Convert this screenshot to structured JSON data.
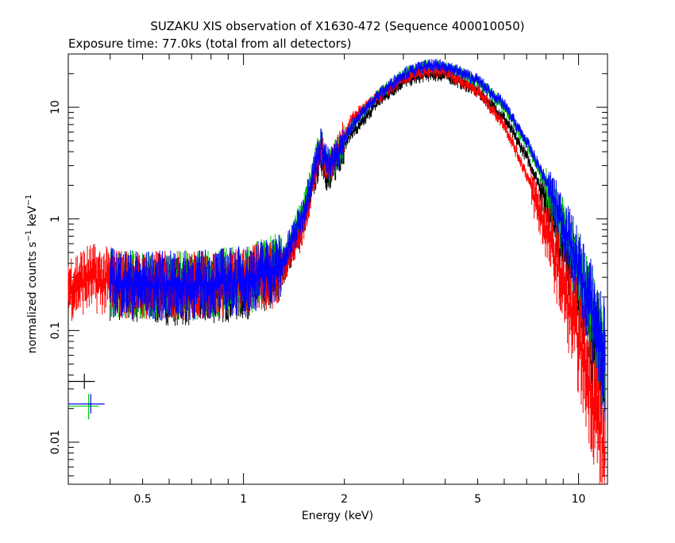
{
  "chart_data": {
    "type": "scatter",
    "title": "SUZAKU XIS observation of X1630-472 (Sequence 400010050)",
    "subtitle": "Exposure time: 77.0ks (total from all detectors)",
    "xlabel": "Energy (keV)",
    "ylabel": {
      "parts": [
        "normalized counts s",
        "−1",
        " keV",
        "−1"
      ]
    },
    "x_scale": "log",
    "y_scale": "log",
    "xlim": [
      0.3,
      12.2
    ],
    "ylim": [
      0.0042,
      30
    ],
    "x_ticks": [
      {
        "value": 0.5,
        "label": "0.5"
      },
      {
        "value": 1,
        "label": "1"
      },
      {
        "value": 2,
        "label": "2"
      },
      {
        "value": 5,
        "label": "5"
      },
      {
        "value": 10,
        "label": "10"
      }
    ],
    "y_ticks": [
      {
        "value": 0.01,
        "label": "0.01"
      },
      {
        "value": 0.1,
        "label": "0.1"
      },
      {
        "value": 1,
        "label": "1"
      },
      {
        "value": 10,
        "label": "10"
      }
    ],
    "grid": false,
    "legend": "none",
    "series": [
      {
        "color": "#000000",
        "x": [
          0.4,
          0.5,
          0.7,
          1.0,
          1.3,
          1.5,
          1.62,
          1.7,
          1.8,
          1.9,
          2.1,
          2.2,
          2.5,
          3.0,
          3.5,
          4.0,
          5.0,
          6.0,
          7.0,
          8.0,
          9.0,
          10.0,
          11.0,
          12.0
        ],
        "y": [
          0.27,
          0.25,
          0.24,
          0.27,
          0.35,
          0.9,
          2.2,
          3.8,
          2.2,
          3.4,
          6.0,
          6.5,
          11.0,
          17.0,
          19.5,
          19.5,
          14.0,
          8.0,
          3.6,
          1.5,
          0.6,
          0.26,
          0.11,
          0.045
        ]
      },
      {
        "color": "#ff0000",
        "x": [
          0.3,
          0.35,
          0.4,
          0.5,
          0.7,
          1.0,
          1.3,
          1.5,
          1.62,
          1.7,
          1.8,
          1.9,
          2.1,
          2.2,
          2.5,
          3.0,
          3.5,
          4.0,
          5.0,
          6.0,
          7.0,
          8.0,
          9.0,
          10.0,
          11.0,
          12.0
        ],
        "y": [
          0.26,
          0.32,
          0.29,
          0.27,
          0.27,
          0.29,
          0.36,
          0.8,
          2.3,
          4.2,
          2.8,
          4.0,
          7.8,
          9.0,
          12.0,
          18.0,
          21.0,
          21.0,
          14.0,
          7.0,
          2.5,
          0.85,
          0.28,
          0.1,
          0.035,
          0.01
        ]
      },
      {
        "color": "#00cc00",
        "x": [
          0.4,
          0.5,
          0.7,
          1.0,
          1.3,
          1.5,
          1.62,
          1.7,
          1.8,
          1.9,
          2.1,
          2.2,
          2.5,
          3.0,
          3.5,
          4.0,
          5.0,
          6.0,
          7.0,
          8.0,
          9.0,
          10.0,
          11.0,
          12.0
        ],
        "y": [
          0.29,
          0.27,
          0.27,
          0.3,
          0.4,
          1.1,
          2.8,
          4.8,
          3.0,
          3.8,
          7.0,
          8.2,
          12.5,
          20.0,
          23.0,
          23.0,
          17.0,
          10.0,
          4.6,
          2.0,
          0.85,
          0.35,
          0.15,
          0.06
        ]
      },
      {
        "color": "#0000ff",
        "x": [
          0.4,
          0.5,
          0.7,
          1.0,
          1.3,
          1.5,
          1.62,
          1.7,
          1.8,
          1.9,
          2.1,
          2.2,
          2.5,
          3.0,
          3.5,
          4.0,
          5.0,
          6.0,
          7.0,
          8.0,
          9.0,
          10.0,
          11.0,
          12.0
        ],
        "y": [
          0.29,
          0.27,
          0.27,
          0.3,
          0.4,
          1.1,
          2.7,
          4.7,
          3.0,
          3.7,
          6.9,
          8.1,
          12.5,
          20.0,
          23.5,
          23.5,
          17.5,
          10.5,
          4.9,
          2.2,
          0.95,
          0.4,
          0.17,
          0.065
        ]
      }
    ],
    "annotations": [
      {
        "color": "#000000",
        "x": 0.335,
        "y": 0.035,
        "x_err": [
          0.3,
          0.36
        ],
        "y_err": [
          0.03,
          0.041
        ]
      },
      {
        "color": "#00cc00",
        "x": 0.345,
        "y": 0.021,
        "x_err": [
          0.3,
          0.37
        ],
        "y_err": [
          0.016,
          0.027
        ]
      },
      {
        "color": "#0000ff",
        "x": 0.35,
        "y": 0.022,
        "x_err": [
          0.3,
          0.385
        ],
        "y_err": [
          0.018,
          0.027
        ]
      }
    ]
  }
}
